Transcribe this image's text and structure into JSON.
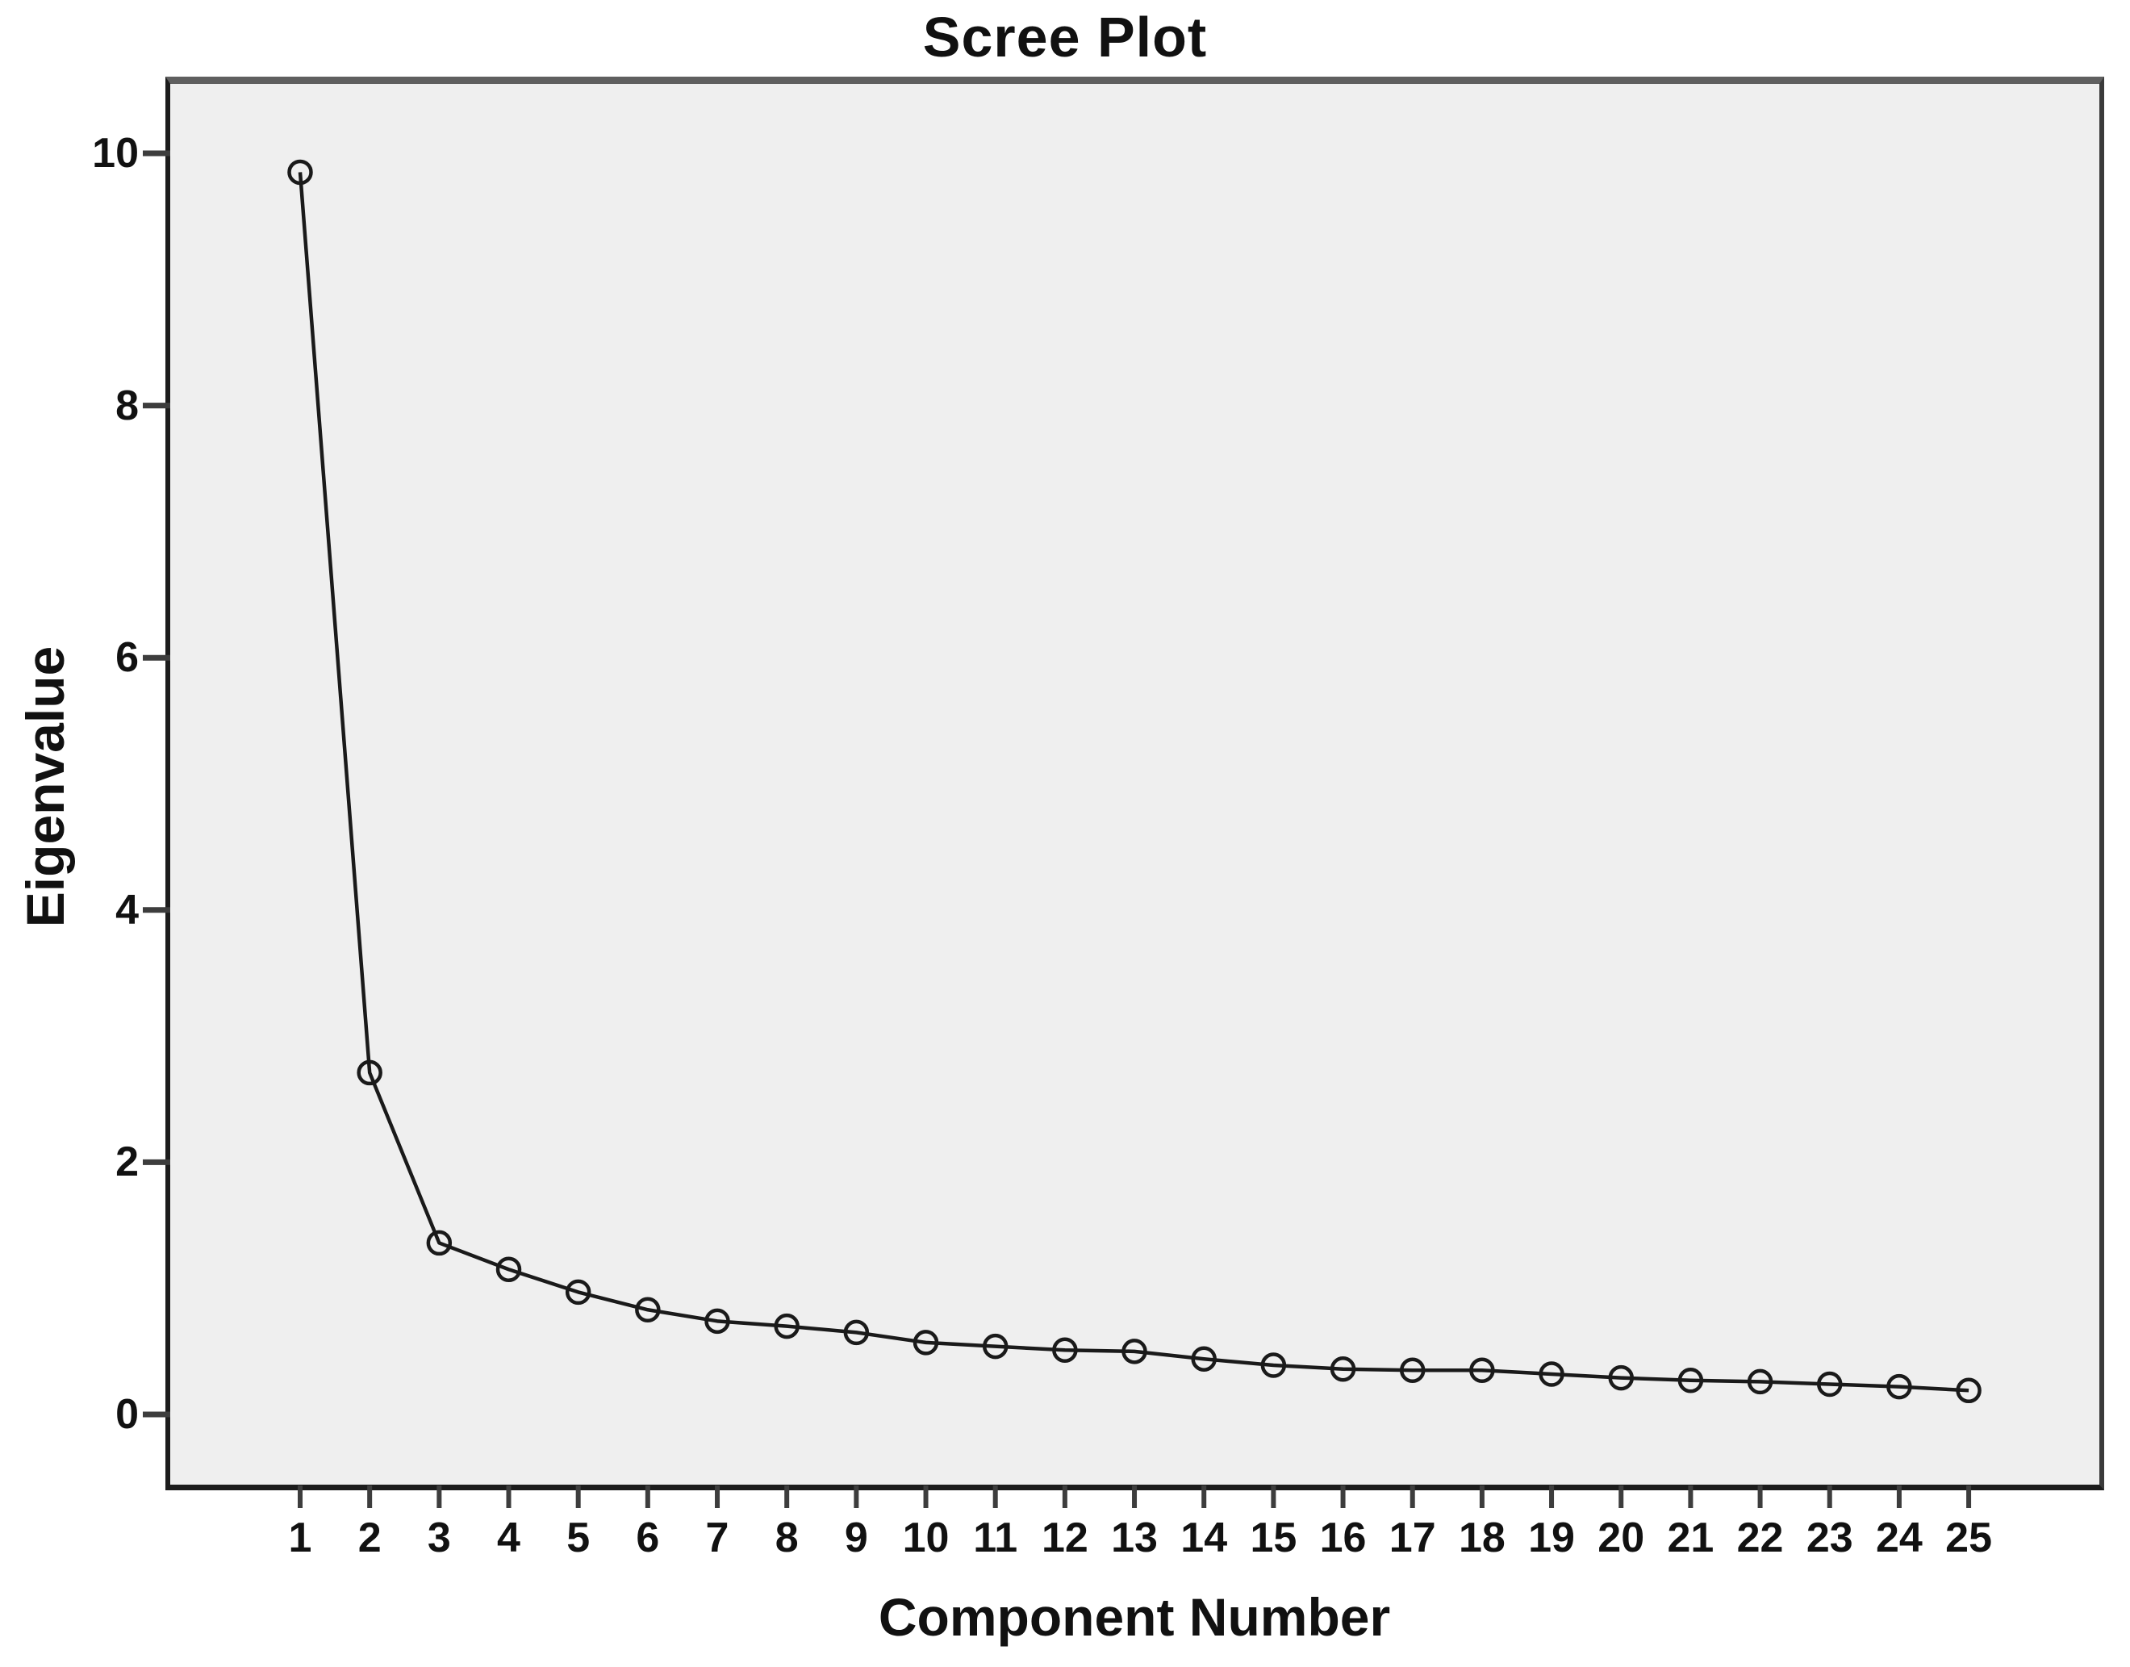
{
  "chart_data": {
    "type": "line",
    "title": "Scree Plot",
    "xlabel": "Component Number",
    "ylabel": "Eigenvalue",
    "x": [
      1,
      2,
      3,
      4,
      5,
      6,
      7,
      8,
      9,
      10,
      11,
      12,
      13,
      14,
      15,
      16,
      17,
      18,
      19,
      20,
      21,
      22,
      23,
      24,
      25
    ],
    "series": [
      {
        "name": "Eigenvalue",
        "marker": "open-circle",
        "values": [
          9.85,
          2.71,
          1.36,
          1.15,
          0.97,
          0.83,
          0.74,
          0.7,
          0.65,
          0.57,
          0.54,
          0.51,
          0.5,
          0.44,
          0.39,
          0.36,
          0.35,
          0.35,
          0.32,
          0.29,
          0.27,
          0.26,
          0.24,
          0.22,
          0.19
        ]
      }
    ],
    "y_ticks": [
      0,
      2,
      4,
      6,
      8,
      10
    ],
    "ylim": [
      -0.56,
      10.55
    ],
    "xlim": [
      -0.87,
      26.88
    ],
    "grid": false,
    "legend": "none",
    "colors": {
      "line": "#1a1a1a",
      "marker_stroke": "#1a1a1a",
      "tick": "#3d3d3d",
      "plot_background": "#efefef",
      "frame": "#1c1c1c",
      "frame_top": "#5f5f5f",
      "page_background": "#ffffff"
    }
  }
}
